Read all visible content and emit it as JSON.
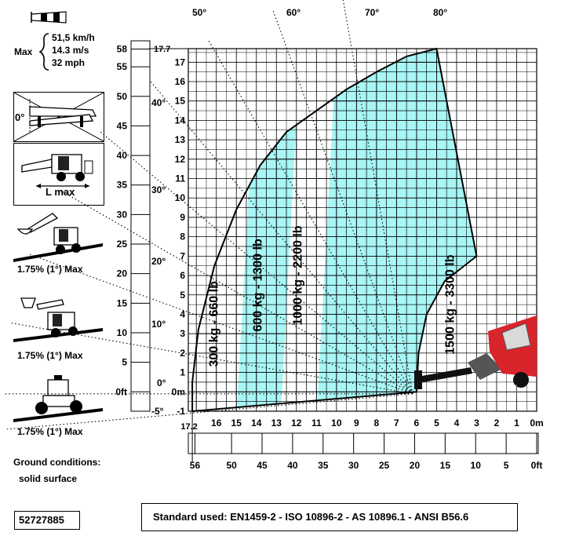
{
  "wind": {
    "label": "Max",
    "speeds": [
      "51,5 km/h",
      "14.3 m/s",
      "32 mph"
    ],
    "icon": "windsock-icon"
  },
  "panels": {
    "frame_angle": "0°",
    "l_max": "L max",
    "slope": "1.75% (1°) Max"
  },
  "ground": {
    "title": "Ground conditions:",
    "value": "solid surface"
  },
  "doc_number": "52727885",
  "standard": "Standard used: EN1459-2 - ISO 10896-2 - AS 10896.1 - ANSI B56.6",
  "chart_data": {
    "type": "area",
    "title": "",
    "y_axis_m": {
      "ticks": [
        -1,
        0,
        1,
        2,
        3,
        4,
        5,
        6,
        7,
        8,
        9,
        10,
        11,
        12,
        13,
        14,
        15,
        16,
        17
      ],
      "tick_labels": [
        "-1",
        "0m",
        "1",
        "2",
        "3",
        "4",
        "5",
        "6",
        "7",
        "8",
        "9",
        "10",
        "11",
        "12",
        "13",
        "14",
        "15",
        "16",
        "17"
      ],
      "max_label": "17.7",
      "range": [
        -1,
        17.7
      ]
    },
    "y_axis_ft": {
      "tick_labels": [
        "0ft",
        "5",
        "10",
        "15",
        "20",
        "25",
        "30",
        "35",
        "40",
        "45",
        "50",
        "55",
        "58"
      ]
    },
    "x_axis_m": {
      "ticks": [
        16,
        15,
        14,
        13,
        12,
        11,
        10,
        9,
        8,
        7,
        6,
        5,
        4,
        3,
        2,
        1,
        0
      ],
      "tick_labels": [
        "16",
        "15",
        "14",
        "13",
        "12",
        "11",
        "10",
        "9",
        "8",
        "7",
        "6",
        "5",
        "4",
        "3",
        "2",
        "1",
        "0m"
      ],
      "max_label": "17.2",
      "range": [
        17.4,
        0
      ]
    },
    "x_axis_ft": {
      "tick_labels": [
        "56",
        "50",
        "45",
        "40",
        "35",
        "30",
        "25",
        "20",
        "15",
        "10",
        "5",
        "0ft"
      ]
    },
    "boom_angles": [
      {
        "label": "-5°",
        "angle": -5
      },
      {
        "label": "0°",
        "angle": 0
      },
      {
        "label": "10°",
        "angle": 10
      },
      {
        "label": "20°",
        "angle": 20
      },
      {
        "label": "30°",
        "angle": 30
      },
      {
        "label": "40°",
        "angle": 40
      },
      {
        "label": "50°",
        "angle": 50
      },
      {
        "label": "60°",
        "angle": 60
      },
      {
        "label": "70°",
        "angle": 70
      },
      {
        "label": "80°",
        "angle": 80
      }
    ],
    "envelope": {
      "outer": [
        [
          5,
          17.7
        ],
        [
          6.5,
          17.3
        ],
        [
          8,
          16.5
        ],
        [
          9.5,
          15.6
        ],
        [
          11,
          14.5
        ],
        [
          12.5,
          13.4
        ],
        [
          13.8,
          11.7
        ],
        [
          15,
          9.4
        ],
        [
          16.1,
          6.5
        ],
        [
          16.9,
          3.2
        ],
        [
          17.2,
          0.5
        ],
        [
          17.2,
          -1
        ]
      ],
      "inner": [
        [
          3,
          7
        ],
        [
          4.6,
          5.7
        ],
        [
          5.5,
          4
        ],
        [
          5.9,
          2
        ],
        [
          6,
          0
        ]
      ],
      "base": [
        [
          17.2,
          -1
        ],
        [
          6,
          0
        ]
      ]
    },
    "series": [
      {
        "name": "300 kg - 660 lb",
        "region": [
          15,
          17.2
        ],
        "color": "#ffffff"
      },
      {
        "name": "600 kg - 1300 lb",
        "region": [
          12.8,
          15
        ],
        "color": "#a8f6f6"
      },
      {
        "name": "1000 kg - 2200 lb",
        "region": [
          11,
          12.8
        ],
        "color": "#ffffff"
      },
      {
        "name": "1500 kg - 3300 lb",
        "region": [
          3,
          11
        ],
        "color": "#a8f6f6"
      }
    ],
    "grid": true,
    "colors": {
      "load_fill": "#a8f6f6",
      "grid": "#000000",
      "machine_red": "#d8242b"
    }
  }
}
